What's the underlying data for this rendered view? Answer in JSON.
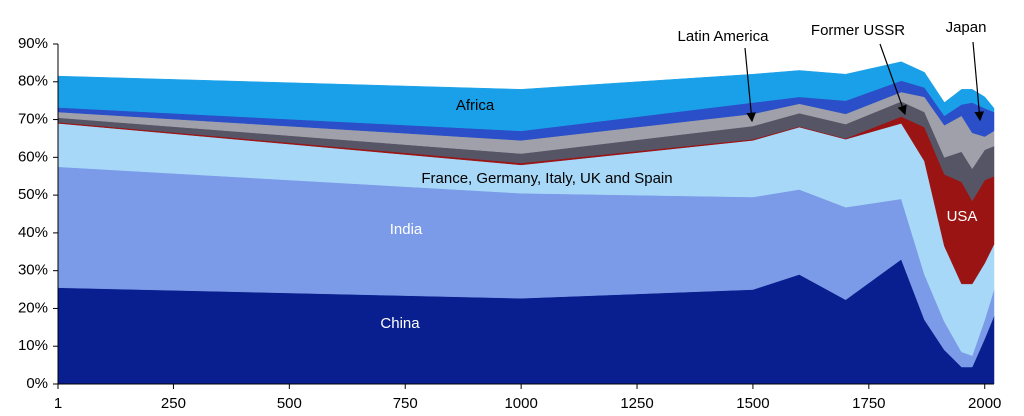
{
  "chart_data": {
    "type": "stacked-area",
    "x": [
      1,
      1000,
      1500,
      1600,
      1700,
      1820,
      1870,
      1913,
      1950,
      1973,
      2000,
      2020
    ],
    "xlim": [
      1,
      2020
    ],
    "xticks": [
      1,
      250,
      500,
      750,
      1000,
      1250,
      1500,
      1750,
      2000
    ],
    "ylim": [
      0,
      90
    ],
    "yticks": [
      {
        "value": 0,
        "label": "0%"
      },
      {
        "value": 10,
        "label": "10%"
      },
      {
        "value": 20,
        "label": "20%"
      },
      {
        "value": 30,
        "label": "30%"
      },
      {
        "value": 40,
        "label": "40%"
      },
      {
        "value": 50,
        "label": "50%"
      },
      {
        "value": 60,
        "label": "60%"
      },
      {
        "value": 70,
        "label": "70%"
      },
      {
        "value": 80,
        "label": "80%"
      },
      {
        "value": 90,
        "label": "90%"
      }
    ],
    "grid": false,
    "series": [
      {
        "name": "China",
        "color": "#0a1f8f",
        "values": [
          25.5,
          22.7,
          25,
          29,
          22.3,
          33,
          17,
          9,
          4.5,
          4.5,
          12,
          18
        ]
      },
      {
        "name": "India",
        "color": "#7b9be8",
        "values": [
          32,
          27.8,
          24.5,
          22.5,
          24.5,
          16,
          12,
          7.5,
          4,
          3,
          5,
          7
        ]
      },
      {
        "name": "France, Germany, Italy, UK and Spain",
        "color": "#a8d8f8",
        "values": [
          11.5,
          7.5,
          15,
          16.5,
          18,
          20,
          30,
          20,
          18,
          19,
          15,
          12
        ]
      },
      {
        "name": "USA",
        "color": "#9b1414",
        "values": [
          0.3,
          0.5,
          0.3,
          0.2,
          0.2,
          1.8,
          9,
          19,
          27,
          22,
          22,
          18
        ]
      },
      {
        "name": "Latin America",
        "color": "#555566",
        "values": [
          1.2,
          2.5,
          3.5,
          3.5,
          3.8,
          4,
          4,
          4.5,
          8,
          8.5,
          8,
          8
        ]
      },
      {
        "name": "Former USSR",
        "color": "#a0a0aa",
        "values": [
          1.5,
          3.5,
          3.2,
          2.5,
          2.7,
          2.5,
          4,
          8.5,
          9.5,
          9.5,
          3.5,
          4
        ]
      },
      {
        "name": "Japan",
        "color": "#2a4fc8",
        "values": [
          1.2,
          2.5,
          3,
          1.8,
          3.5,
          3,
          2.5,
          2.5,
          3,
          8,
          7.5,
          5
        ]
      },
      {
        "name": "Africa",
        "color": "#1aa0e8",
        "values": [
          8.3,
          11,
          7.5,
          7,
          7,
          5,
          4,
          3.5,
          4,
          3.5,
          3,
          1
        ]
      }
    ]
  }
}
